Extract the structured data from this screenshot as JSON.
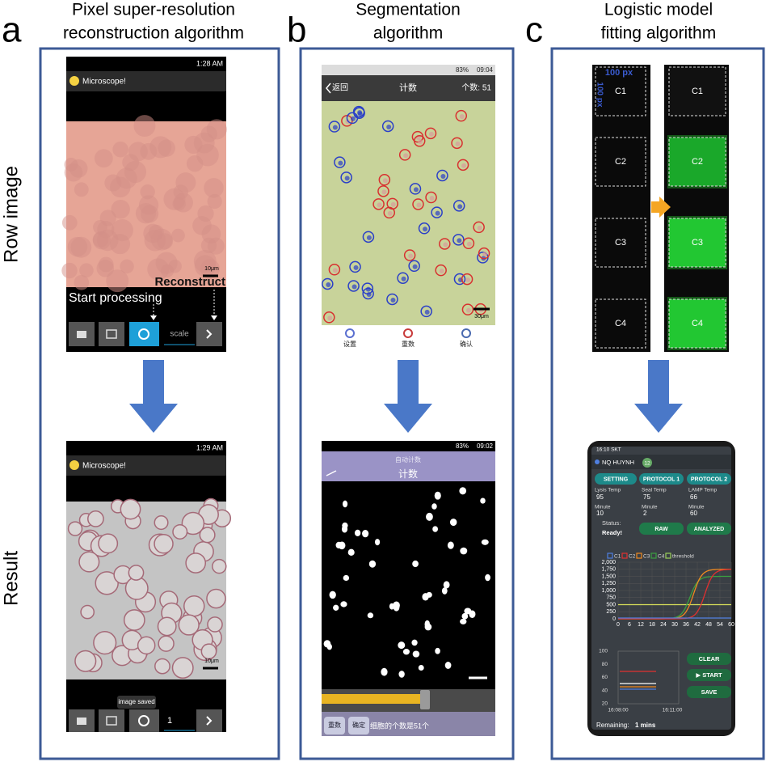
{
  "panels": [
    {
      "letter": "a",
      "title": [
        "Pixel super-resolution",
        "reconstruction algorithm"
      ],
      "row_labels": [
        "Row image",
        "Result"
      ],
      "top_screen": {
        "time": "1:28 AM",
        "app": "Microscope!",
        "scale_bar": "10μm",
        "annotations": [
          "Reconstruct",
          "Start processing"
        ],
        "input": "scale"
      },
      "bottom_screen": {
        "time": "1:29 AM",
        "app": "Microscope!",
        "scale_bar": "10μm",
        "toast": "image saved",
        "input": "1"
      }
    },
    {
      "letter": "b",
      "title": [
        "Segmentation",
        "algorithm"
      ],
      "top_screen": {
        "battery": "83%",
        "time": "09:04",
        "back": "返回",
        "header": "计数",
        "count": "个数: 51",
        "scale_bar": "30μm",
        "tools": [
          "设置",
          "重数",
          "确认"
        ]
      },
      "bottom_screen": {
        "battery": "83%",
        "time": "09:02",
        "subheader": "自动计数",
        "header": "计数",
        "buttons": [
          "重数",
          "确定"
        ],
        "result": "细胞的个数是51个"
      }
    },
    {
      "letter": "c",
      "title": [
        "Logistic model",
        "fitting algorithm"
      ],
      "strip": {
        "size_label": "100 px",
        "side_label": "100 px",
        "chambers": [
          "C1",
          "C2",
          "C3",
          "C4"
        ]
      },
      "strip_result": {
        "chambers": [
          "C1",
          "C2",
          "C3",
          "C4"
        ]
      },
      "app": {
        "status_time": "16:10 SKT",
        "user": "NQ HUYNH",
        "badge": "12",
        "tabs": [
          "SETTING",
          "PROTOCOL 1",
          "PROTOCOL 2"
        ],
        "params": [
          {
            "name": "Lysis Temp",
            "temp": "95",
            "time_label": "Minute",
            "time": "10"
          },
          {
            "name": "Seal Temp",
            "temp": "75",
            "time_label": "Minute",
            "time": "2"
          },
          {
            "name": "LAMP Temp",
            "temp": "66",
            "time_label": "Minute",
            "time": "60"
          }
        ],
        "status_label": "Status:",
        "status": "Ready!",
        "modes": [
          "RAW",
          "ANALYZED"
        ],
        "legend": [
          "C1",
          "C2",
          "C3",
          "C4",
          "threshold"
        ],
        "chart_yticks": [
          "2,000",
          "1,750",
          "1,500",
          "1,250",
          "1,000",
          "750",
          "500",
          "250",
          "0"
        ],
        "chart_xticks": [
          "0",
          "6",
          "12",
          "18",
          "24",
          "30",
          "36",
          "42",
          "48",
          "54",
          "60"
        ],
        "temp_yticks": [
          "100",
          "80",
          "60",
          "40",
          "20"
        ],
        "temp_xticks": [
          "16:08:00",
          "16:11:00"
        ],
        "controls": [
          "CLEAR",
          "▶ START",
          "SAVE"
        ],
        "remaining_label": "Remaining:",
        "remaining": "1 mins"
      }
    }
  ]
}
